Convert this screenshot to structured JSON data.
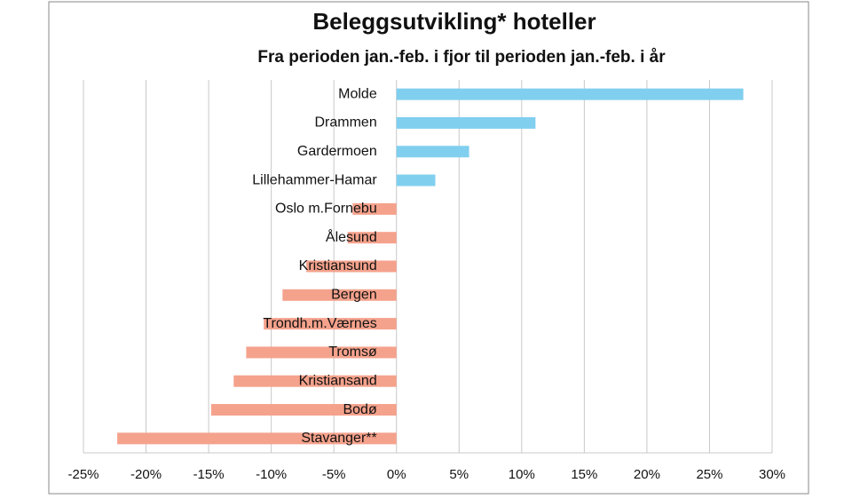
{
  "chart_data": {
    "type": "barh",
    "title": "Beleggsutvikling* hoteller",
    "subtitle": "Fra perioden jan.-feb. i fjor til perioden jan.-feb. i år",
    "categories": [
      "Molde",
      "Drammen",
      "Gardermoen",
      "Lillehammer-Hamar",
      "Oslo m.Fornebu",
      "Ålesund",
      "Kristiansund",
      "Bergen",
      "Trondh.m.Værnes",
      "Tromsø",
      "Kristiansand",
      "Bodø",
      "Stavanger**"
    ],
    "values": [
      27.7,
      11.1,
      5.8,
      3.1,
      -3.5,
      -3.9,
      -7.2,
      -9.1,
      -10.6,
      -12.0,
      -13.0,
      -14.8,
      -22.3
    ],
    "positive_color": "#80cfef",
    "negative_color": "#f5a28c",
    "xlim": [
      -25,
      30
    ],
    "xticks": [
      {
        "value": -25,
        "label": "-25%"
      },
      {
        "value": -20,
        "label": "-20%"
      },
      {
        "value": -15,
        "label": "-15%"
      },
      {
        "value": -10,
        "label": "-10%"
      },
      {
        "value": -5,
        "label": "-5%"
      },
      {
        "value": 0,
        "label": "0%"
      },
      {
        "value": 5,
        "label": "5%"
      },
      {
        "value": 10,
        "label": "10%"
      },
      {
        "value": 15,
        "label": "15%"
      },
      {
        "value": 20,
        "label": "20%"
      },
      {
        "value": 25,
        "label": "25%"
      },
      {
        "value": 30,
        "label": "30%"
      }
    ],
    "grid": true
  }
}
